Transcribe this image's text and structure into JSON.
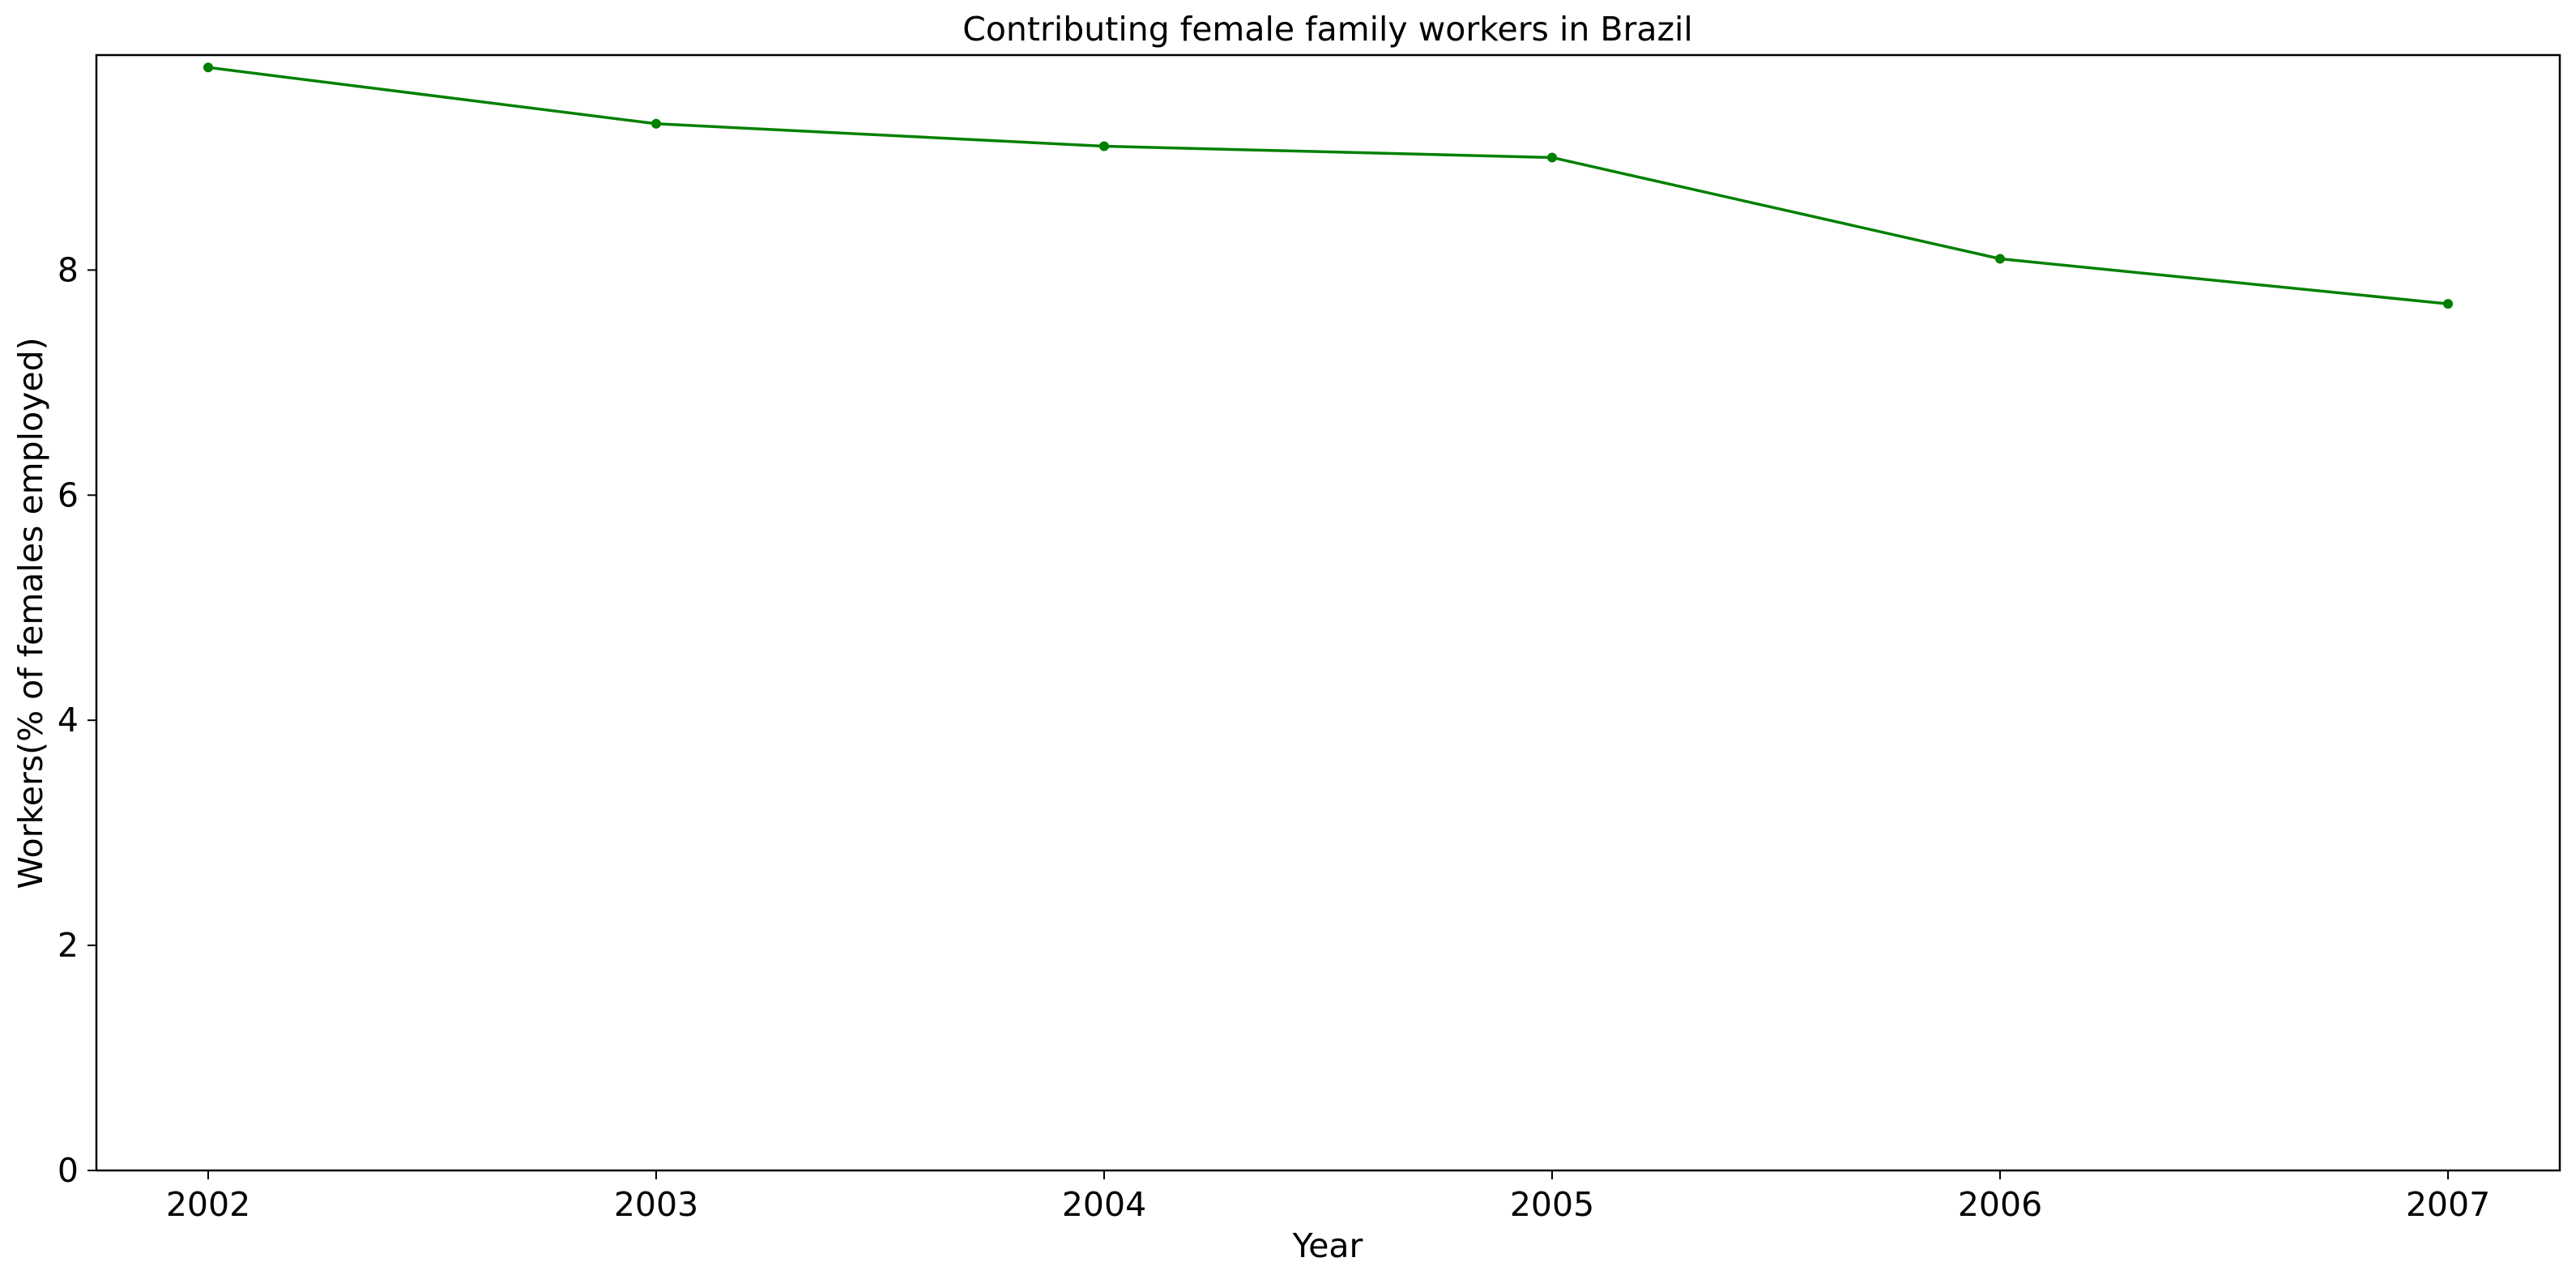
{
  "chart_data": {
    "type": "line",
    "title": "Contributing female family workers in Brazil",
    "xlabel": "Year",
    "ylabel": "Workers(% of females employed)",
    "x": [
      "2002",
      "2003",
      "2004",
      "2005",
      "2006",
      "2007"
    ],
    "series": [
      {
        "values": [
          9.8,
          9.3,
          9.1,
          9.0,
          8.1,
          7.7
        ],
        "color": "#008000",
        "marker": "dot"
      }
    ],
    "ylim": [
      0,
      9.91
    ],
    "yticks": [
      "0",
      "2",
      "4",
      "6",
      "8"
    ],
    "grid": false,
    "legend": "none"
  }
}
